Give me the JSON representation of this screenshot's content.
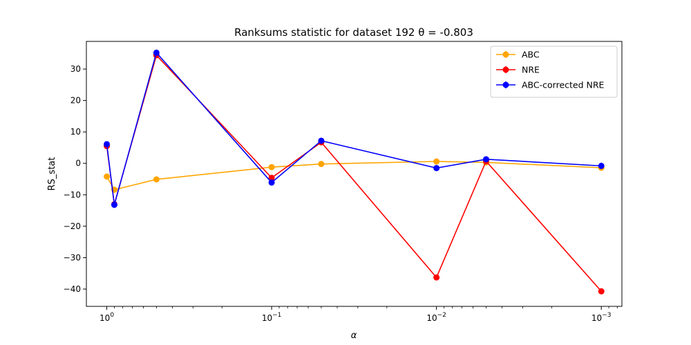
{
  "chart_data": {
    "type": "line",
    "title": "Ranksums statistic for dataset 192 θ =  -0.803",
    "xlabel": "α",
    "ylabel": "RS_stat",
    "xscale": "log",
    "x_inverted": true,
    "xlim": [
      1.33,
      0.00075
    ],
    "ylim": [
      -45.5,
      38.8
    ],
    "x": [
      1,
      0.9,
      0.5,
      0.1,
      0.05,
      0.01,
      0.005,
      0.001
    ],
    "xtick_values": [
      1,
      0.1,
      0.01,
      0.001
    ],
    "xtick_labels": [
      "10^0",
      "10^-1",
      "10^-2",
      "10^-3"
    ],
    "yticks": [
      30,
      20,
      10,
      0,
      -10,
      -20,
      -30,
      -40
    ],
    "ytick_labels": [
      "30",
      "20",
      "10",
      "0",
      "−10",
      "−20",
      "−30",
      "−40"
    ],
    "grid": false,
    "legend_position": "top-right",
    "series": [
      {
        "name": "ABC",
        "color": "#ffa500",
        "values": [
          -4.2,
          -8.4,
          -5.1,
          -1.2,
          -0.2,
          0.6,
          0.3,
          -1.4
        ],
        "errors": [
          0.4,
          0.4,
          0.4,
          0.4,
          0.4,
          0.4,
          0.4,
          0.4
        ]
      },
      {
        "name": "NRE",
        "color": "#ff0000",
        "values": [
          5.5,
          -13.0,
          34.4,
          -4.6,
          6.7,
          -36.3,
          0.7,
          -40.7
        ],
        "errors": [
          0.4,
          0.4,
          0.4,
          0.4,
          0.4,
          0.4,
          0.4,
          0.4
        ]
      },
      {
        "name": "ABC-corrected NRE",
        "color": "#0000ff",
        "values": [
          6.1,
          -13.2,
          35.2,
          -6.1,
          7.2,
          -1.5,
          1.3,
          -0.8
        ],
        "errors": [
          0.4,
          0.4,
          0.4,
          0.4,
          0.4,
          0.4,
          0.4,
          1.0
        ]
      }
    ]
  }
}
